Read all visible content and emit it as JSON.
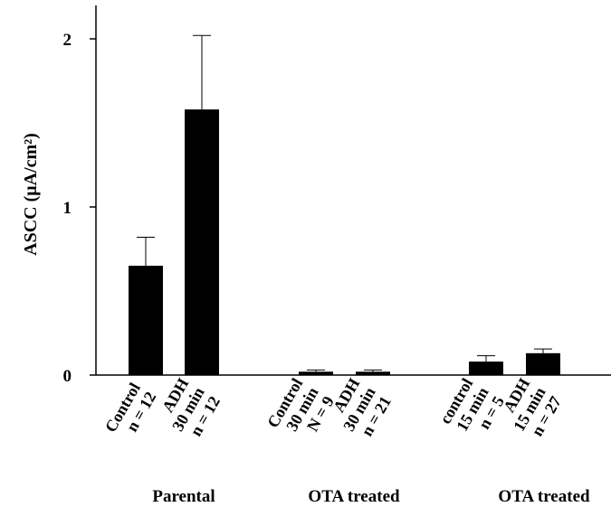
{
  "chart_data": {
    "type": "bar",
    "ylabel": "ASCC (μA/cm²)",
    "ylim": [
      0,
      2.2
    ],
    "yticks": [
      "0",
      "1",
      "2"
    ],
    "bar_color": "#000000",
    "categories": [
      {
        "lines": [
          "Control",
          "n = 12"
        ],
        "value": 0.65,
        "error": 0.17
      },
      {
        "lines": [
          "ADH",
          "30 min",
          "n = 12"
        ],
        "value": 1.58,
        "error": 0.44
      },
      {
        "lines": [
          "Control",
          "30 min",
          "N = 9"
        ],
        "value": 0.02,
        "error": 0.01
      },
      {
        "lines": [
          "ADH",
          "30 min",
          "n = 21"
        ],
        "value": 0.02,
        "error": 0.01
      },
      {
        "lines": [
          "control",
          "15 min",
          "n = 5"
        ],
        "value": 0.08,
        "error": 0.035
      },
      {
        "lines": [
          "ADH",
          "15 min",
          "n = 27"
        ],
        "value": 0.13,
        "error": 0.025
      }
    ],
    "groups": [
      {
        "label": "Parental",
        "members": [
          0,
          1
        ]
      },
      {
        "label": "OTA treated",
        "members": [
          2,
          3
        ]
      },
      {
        "label": "OTA treated",
        "members": [
          4,
          5
        ]
      }
    ]
  }
}
